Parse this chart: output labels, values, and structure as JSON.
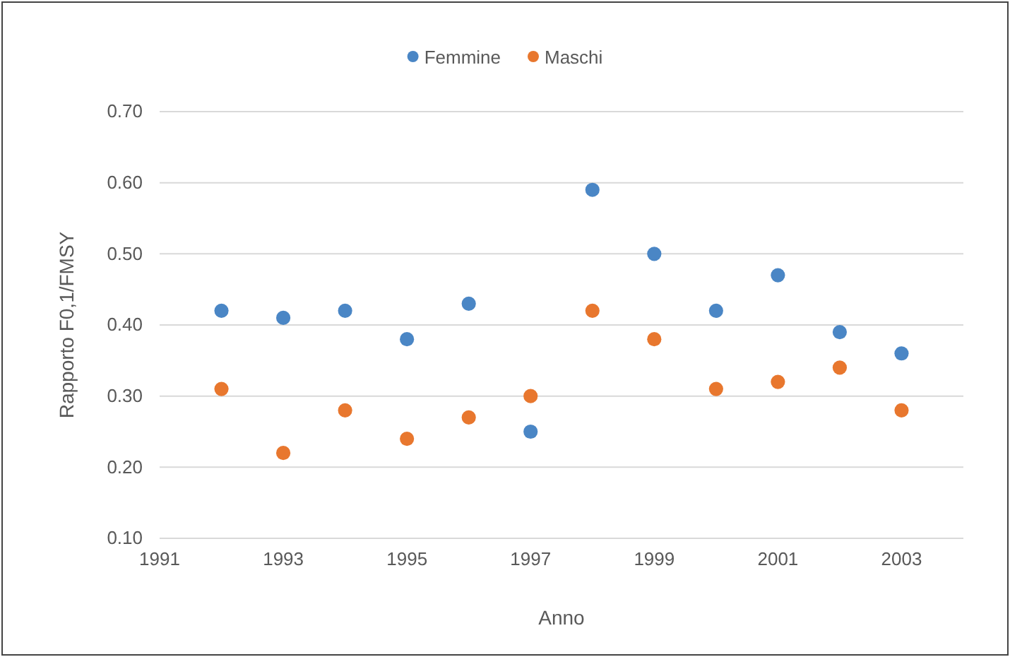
{
  "chart_data": {
    "type": "scatter",
    "xlabel": "Anno",
    "ylabel": "Rapporto F0,1/FMSY",
    "x": [
      1992,
      1993,
      1994,
      1995,
      1996,
      1997,
      1998,
      1999,
      2000,
      2001,
      2002,
      2003
    ],
    "series": [
      {
        "name": "Femmine",
        "color": "#4a86c5",
        "values": [
          0.42,
          0.41,
          0.42,
          0.38,
          0.43,
          0.25,
          0.59,
          0.5,
          0.42,
          0.47,
          0.39,
          0.36
        ]
      },
      {
        "name": "Maschi",
        "color": "#e8772e",
        "values": [
          0.31,
          0.22,
          0.28,
          0.24,
          0.27,
          0.3,
          0.42,
          0.38,
          0.31,
          0.32,
          0.34,
          0.28
        ]
      }
    ],
    "xlim": [
      1991,
      2004
    ],
    "xticks": [
      1991,
      1993,
      1995,
      1997,
      1999,
      2001,
      2003
    ],
    "ylim": [
      0.1,
      0.7
    ],
    "yticks": [
      {
        "value": 0.1,
        "label": "0.10"
      },
      {
        "value": 0.2,
        "label": "0.20"
      },
      {
        "value": 0.3,
        "label": "0.30"
      },
      {
        "value": 0.4,
        "label": "0.40"
      },
      {
        "value": 0.5,
        "label": "0.50"
      },
      {
        "value": 0.6,
        "label": "0.60"
      },
      {
        "value": 0.7,
        "label": "0.70"
      }
    ],
    "grid": "y",
    "legend": "top",
    "marker": "circle"
  }
}
